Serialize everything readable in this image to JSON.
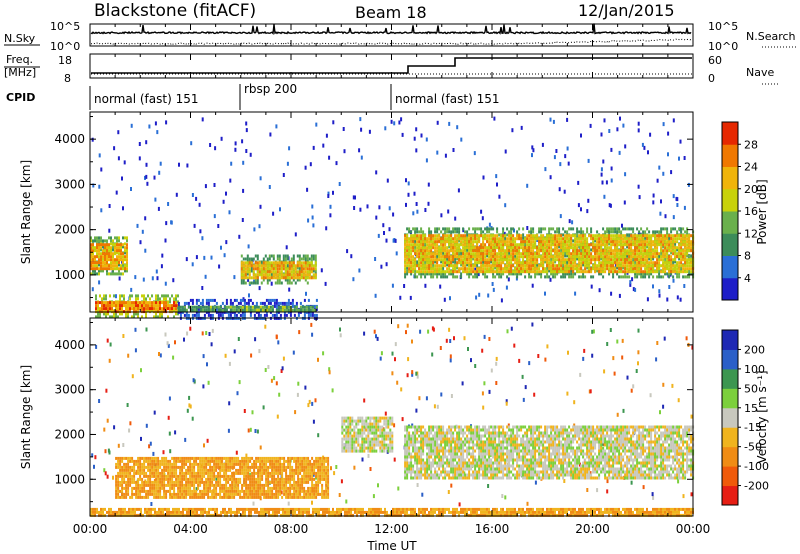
{
  "header": {
    "site": "Blackstone (fitACF)",
    "beam": "Beam 18",
    "date": "12/Jan/2015"
  },
  "nsky_panel": {
    "left_label": "N.Sky",
    "left_ticks": [
      "10^5",
      "10^0"
    ],
    "right_label": "N.Search",
    "right_ticks": [
      "10^5",
      "10^0"
    ]
  },
  "freq_panel": {
    "left_label_top": "Freq.",
    "left_label_bottom": "[MHz]",
    "left_ticks": [
      "18",
      "8"
    ],
    "right_label": "Nave",
    "right_ticks": [
      "60",
      "0"
    ]
  },
  "cpid": {
    "label": "CPID",
    "segments": [
      {
        "label": "normal (fast) 151",
        "start_hour": 0,
        "end_hour": 6
      },
      {
        "label": "rbsp 200",
        "start_hour": 6,
        "end_hour": 12
      },
      {
        "label": "normal (fast) 151",
        "start_hour": 12,
        "end_hour": 24
      }
    ]
  },
  "x_axis": {
    "title": "Time UT",
    "ticks": [
      "00:00",
      "04:00",
      "08:00",
      "12:00",
      "16:00",
      "20:00",
      "00:00"
    ]
  },
  "power_panel": {
    "ylabel": "Slant Range [km]",
    "y_ticks": [
      "1000",
      "2000",
      "3000",
      "4000"
    ],
    "colorbar_label": "Power [dB]",
    "colorbar_ticks": [
      "4",
      "8",
      "12",
      "16",
      "20",
      "24",
      "28"
    ],
    "colors": [
      "#1e1ec8",
      "#2a6fd6",
      "#3c8c5a",
      "#6ab04c",
      "#c8d20a",
      "#f0b40a",
      "#f07800",
      "#e62800"
    ]
  },
  "velocity_panel": {
    "ylabel": "Slant Range [km]",
    "y_ticks": [
      "1000",
      "2000",
      "3000",
      "4000"
    ],
    "colorbar_label": "Velocity [m s⁻¹]",
    "colorbar_ticks": [
      "200",
      "100",
      "50",
      "15",
      "-15",
      "-50",
      "-100",
      "-200"
    ],
    "colors": [
      "#1e28b4",
      "#2a5fc8",
      "#3c9650",
      "#7cd03c",
      "#c8c8be",
      "#f0b41e",
      "#f08c14",
      "#f05a0a",
      "#e61e14"
    ]
  },
  "chart_data": {
    "type": "heatmap",
    "x_range_hours": [
      0,
      24
    ],
    "y_range_km": [
      180,
      4600
    ],
    "power_features": [
      {
        "t0": 0,
        "t1": 1.5,
        "r0": 1150,
        "r1": 1700,
        "value_db": 22
      },
      {
        "t0": 0.2,
        "t1": 3.5,
        "r0": 200,
        "r1": 420,
        "value_db": 24
      },
      {
        "t0": 3.5,
        "t1": 9,
        "r0": 200,
        "r1": 320,
        "value_db": 12
      },
      {
        "t0": 6,
        "t1": 9,
        "r0": 950,
        "r1": 1300,
        "value_db": 20
      },
      {
        "t0": 12.5,
        "t1": 24,
        "r0": 1100,
        "r1": 1900,
        "value_db": 20
      }
    ],
    "velocity_features": [
      {
        "t0": 1,
        "t1": 9.5,
        "r0": 600,
        "r1": 1500,
        "value_ms": -50
      },
      {
        "t0": 12.5,
        "t1": 24,
        "r0": 1000,
        "r1": 2200,
        "value_ms": 0
      },
      {
        "t0": 10,
        "t1": 12,
        "r0": 1600,
        "r1": 2400,
        "value_ms": 0
      },
      {
        "t0": 0,
        "t1": 24,
        "r0": 200,
        "r1": 360,
        "value_ms": -50
      }
    ]
  }
}
